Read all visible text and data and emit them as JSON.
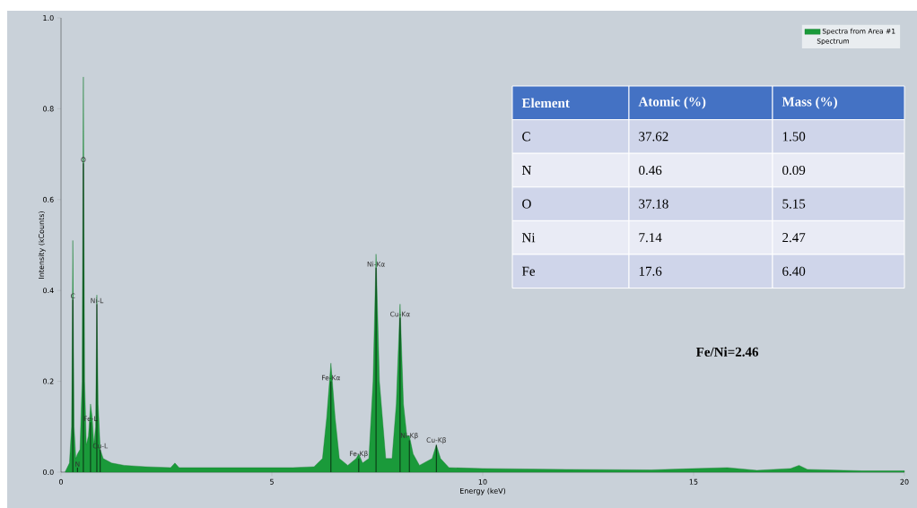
{
  "chart_data": [
    {
      "type": "area",
      "xlabel": "Energy (keV)",
      "ylabel": "Intensity (kCounts)",
      "legend": "top right",
      "legend_title": "Spectrum",
      "xlim": [
        0,
        20
      ],
      "ylim": [
        0,
        1.0
      ],
      "xticks": [
        0,
        5,
        10,
        15,
        20
      ],
      "yticks": [
        {
          "value": 0,
          "label": "0.0"
        },
        0.2,
        0.4,
        0.6,
        0.8,
        {
          "value": 1.0,
          "label": "1.0"
        }
      ],
      "x": [
        0.1,
        0.2,
        0.25,
        0.28,
        0.31,
        0.35,
        0.39,
        0.45,
        0.5,
        0.53,
        0.56,
        0.6,
        0.65,
        0.7,
        0.74,
        0.78,
        0.82,
        0.85,
        0.88,
        0.93,
        1.0,
        1.2,
        1.5,
        2.0,
        2.6,
        2.7,
        2.8,
        3.5,
        4.5,
        5.5,
        6.0,
        6.2,
        6.3,
        6.4,
        6.5,
        6.6,
        6.8,
        7.0,
        7.06,
        7.15,
        7.3,
        7.4,
        7.47,
        7.55,
        7.7,
        7.85,
        7.95,
        8.04,
        8.12,
        8.2,
        8.26,
        8.35,
        8.5,
        8.8,
        8.9,
        9.0,
        9.2,
        10,
        12,
        14,
        15.8,
        16.5,
        17.3,
        17.5,
        17.7,
        19,
        20
      ],
      "series": [
        {
          "name": "Spectra from Area #1",
          "color": "#1a9a3a",
          "values": [
            0.001,
            0.02,
            0.1,
            0.51,
            0.1,
            0.03,
            0.04,
            0.05,
            0.2,
            0.87,
            0.2,
            0.06,
            0.08,
            0.15,
            0.12,
            0.06,
            0.1,
            0.39,
            0.15,
            0.05,
            0.03,
            0.02,
            0.015,
            0.012,
            0.01,
            0.02,
            0.01,
            0.01,
            0.01,
            0.01,
            0.012,
            0.03,
            0.12,
            0.24,
            0.12,
            0.03,
            0.015,
            0.03,
            0.04,
            0.02,
            0.03,
            0.2,
            0.48,
            0.2,
            0.03,
            0.03,
            0.15,
            0.37,
            0.15,
            0.08,
            0.08,
            0.04,
            0.015,
            0.03,
            0.06,
            0.03,
            0.01,
            0.008,
            0.006,
            0.005,
            0.01,
            0.004,
            0.008,
            0.015,
            0.006,
            0.003,
            0.003
          ]
        }
      ],
      "annotations": [
        {
          "text": "C",
          "x": 0.28,
          "y": 0.38
        },
        {
          "text": "N",
          "x": 0.39,
          "y": 0.01
        },
        {
          "text": "O",
          "x": 0.53,
          "y": 0.68
        },
        {
          "text": "Fe-L",
          "x": 0.7,
          "y": 0.11
        },
        {
          "text": "Ni-L",
          "x": 0.85,
          "y": 0.37
        },
        {
          "text": "Cu-L",
          "x": 0.93,
          "y": 0.05
        },
        {
          "text": "Fe-Kα",
          "x": 6.4,
          "y": 0.2
        },
        {
          "text": "Fe-Kβ",
          "x": 7.06,
          "y": 0.03
        },
        {
          "text": "Ni-Kα",
          "x": 7.47,
          "y": 0.45
        },
        {
          "text": "Cu-Kα",
          "x": 8.04,
          "y": 0.34
        },
        {
          "text": "Ni-Kβ",
          "x": 8.26,
          "y": 0.07
        },
        {
          "text": "Cu-Kβ",
          "x": 8.9,
          "y": 0.06
        },
        "Fe/Ni=2.46"
      ]
    },
    {
      "type": "other",
      "annotations": [
        "Element",
        "Atomic (%)",
        "Mass (%)",
        "C",
        "37.62",
        "1.50",
        "N",
        "0.46",
        "0.09",
        "O",
        "37.18",
        "5.15",
        "Ni",
        "7.14",
        "2.47",
        "Fe",
        "17.6",
        "6.40"
      ]
    }
  ]
}
